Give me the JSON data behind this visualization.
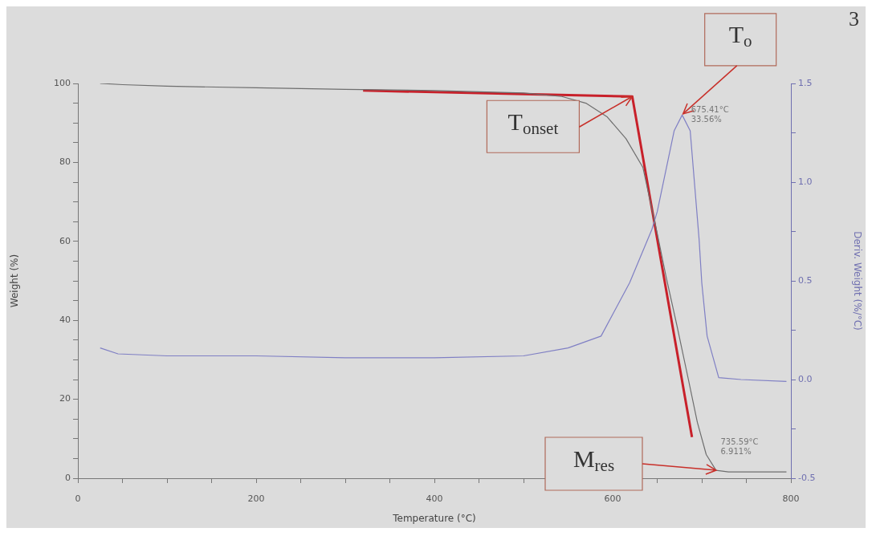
{
  "chart_data": {
    "type": "line",
    "xlabel": "Temperature (°C)",
    "ylabel": "Weight (%)",
    "y2label": "Deriv. Weight (%/°C)",
    "xlim": [
      0,
      800
    ],
    "xticks": [
      0,
      {
        "value": 50,
        "label": null
      },
      {
        "value": 100,
        "label": null
      },
      {
        "value": 150,
        "label": null
      },
      200,
      {
        "value": 250,
        "label": null
      },
      {
        "value": 300,
        "label": null
      },
      {
        "value": 350,
        "label": null
      },
      400,
      {
        "value": 450,
        "label": null
      },
      {
        "value": 500,
        "label": null
      },
      {
        "value": 550,
        "label": null
      },
      600,
      {
        "value": 650,
        "label": null
      },
      {
        "value": 700,
        "label": null
      },
      {
        "value": 750,
        "label": null
      },
      800
    ],
    "ylim": [
      0,
      100
    ],
    "yticks": [
      0,
      {
        "value": 5,
        "label": null
      },
      {
        "value": 10,
        "label": null
      },
      {
        "value": 15,
        "label": null
      },
      20,
      {
        "value": 25,
        "label": null
      },
      {
        "value": 30,
        "label": null
      },
      {
        "value": 35,
        "label": null
      },
      40,
      {
        "value": 45,
        "label": null
      },
      {
        "value": 50,
        "label": null
      },
      {
        "value": 55,
        "label": null
      },
      60,
      {
        "value": 65,
        "label": null
      },
      {
        "value": 70,
        "label": null
      },
      {
        "value": 75,
        "label": null
      },
      80,
      {
        "value": 85,
        "label": null
      },
      {
        "value": 90,
        "label": null
      },
      {
        "value": 95,
        "label": null
      },
      100
    ],
    "y2lim": [
      -0.5,
      1.5
    ],
    "y2ticks": [
      {
        "value": -0.5,
        "label": "-0.5"
      },
      {
        "value": -0.25,
        "label": null
      },
      {
        "value": 0,
        "label": "0.0"
      },
      {
        "value": 0.25,
        "label": null
      },
      {
        "value": 0.5,
        "label": "0.5"
      },
      {
        "value": 0.75,
        "label": null
      },
      {
        "value": 1,
        "label": "1.0"
      },
      {
        "value": 1.25,
        "label": null
      },
      {
        "value": 1.5,
        "label": "1.5"
      }
    ],
    "grid": false,
    "legend": false,
    "marker": "none",
    "line_style": "solid",
    "series": [
      {
        "color": "#6e6e6e",
        "x": [
          25,
          50,
          100,
          200,
          300,
          400,
          500,
          543,
          570,
          594,
          615,
          634,
          650,
          660,
          672,
          685,
          695,
          705,
          716,
          730,
          795
        ],
        "values": [
          100,
          99.7,
          99.3,
          98.9,
          98.5,
          98.2,
          97.6,
          96.7,
          95,
          91.5,
          86,
          78.7,
          62,
          51,
          38.8,
          25,
          14.2,
          6,
          2,
          1.6,
          1.6
        ]
      },
      {
        "color": "#7f7fc4",
        "axis": "y2",
        "x": [
          25,
          45,
          100,
          200,
          300,
          400,
          500,
          550,
          587,
          619,
          644,
          650,
          669,
          678,
          687,
          697,
          700,
          706,
          719,
          744,
          795
        ],
        "values": [
          0.16,
          0.13,
          0.12,
          0.12,
          0.11,
          0.11,
          0.12,
          0.16,
          0.22,
          0.49,
          0.76,
          0.85,
          1.26,
          1.34,
          1.26,
          0.71,
          0.49,
          0.22,
          0.01,
          0,
          -0.01
        ]
      },
      {
        "color": "#c8202a",
        "x": [
          320,
          622,
          689
        ],
        "values": [
          98.2,
          96.7,
          10.4
        ]
      }
    ],
    "annotations": [
      {
        "text": "T$_{o}$",
        "x": 679,
        "y": 92.3
      },
      {
        "text": "T$_{onset}$",
        "x": 622,
        "y": 96.7
      },
      "M$_{res}$",
      {
        "text": "675.41°C\n33.56%",
        "x": 675.41,
        "y": 90.2
      },
      {
        "text": "735.59°C\n6.911%",
        "x": 735.59,
        "y": 1.6
      },
      "3"
    ]
  }
}
